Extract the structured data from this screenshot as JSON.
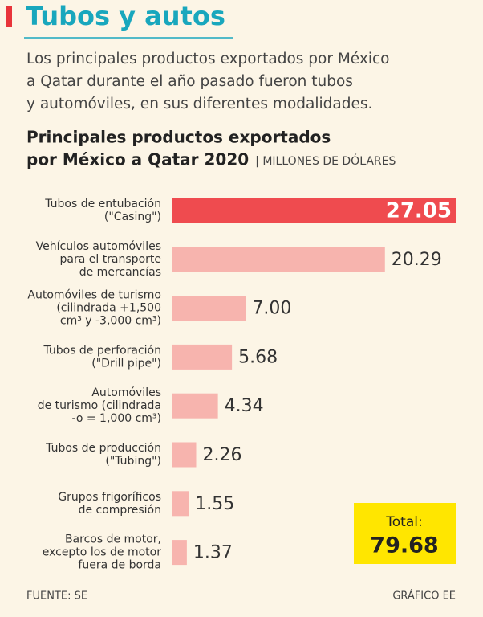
{
  "title": "Tubos y autos",
  "subtitle": [
    "Los principales productos exportados por México",
    "a Qatar durante el año pasado fueron tubos",
    "y automóviles, en sus diferentes modalidades."
  ],
  "chart_data": {
    "type": "bar",
    "orientation": "horizontal",
    "title": [
      "Principales productos exportados",
      "por México a Qatar 2020"
    ],
    "unit": "| MILLONES DE DÓLARES",
    "categories": [
      [
        "Tubos de entubación",
        "(\"Casing\")"
      ],
      [
        "Vehículos automóviles",
        "para el transporte",
        "de mercancías"
      ],
      [
        "Automóviles de turismo",
        "(cilindrada +1,500",
        "cm³ y -3,000 cm³)"
      ],
      [
        "Tubos de perforación",
        "(\"Drill pipe\")"
      ],
      [
        "Automóviles",
        "de turismo (cilindrada",
        "-o = 1,000 cm³)"
      ],
      [
        "Tubos de producción",
        "(\"Tubing\")"
      ],
      [
        "Grupos frigoríficos",
        "de compresión"
      ],
      [
        "Barcos de motor,",
        "excepto los de motor",
        "fuera de borda"
      ]
    ],
    "values": [
      27.05,
      20.29,
      7.0,
      5.68,
      4.34,
      2.26,
      1.55,
      1.37
    ],
    "value_labels": [
      "27.05",
      "20.29",
      "7.00",
      "5.68",
      "4.34",
      "2.26",
      "1.55",
      "1.37"
    ],
    "colors": [
      "#ef4b4f",
      "#f7b4ae",
      "#f7b4ae",
      "#f7b4ae",
      "#f7b4ae",
      "#f7b4ae",
      "#f7b4ae",
      "#f7b4ae"
    ],
    "total": {
      "label": "Total:",
      "value": 79.68
    }
  },
  "source": "FUENTE: SE",
  "credit": "GRÁFICO EE"
}
